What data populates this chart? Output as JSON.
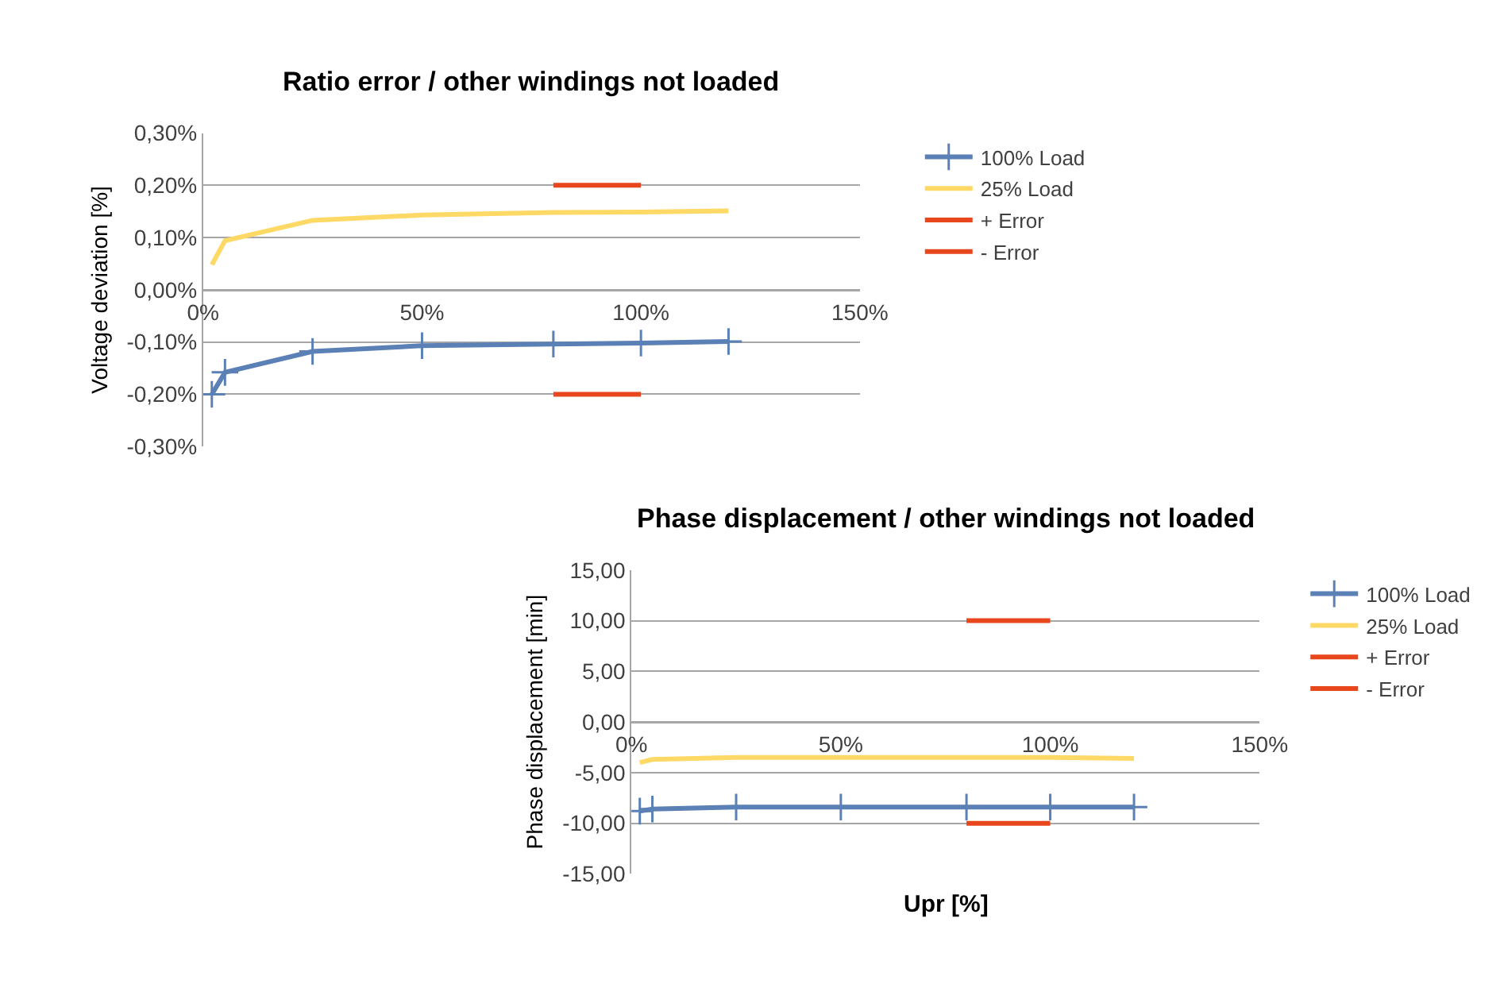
{
  "chart_data": [
    {
      "type": "line",
      "title": "Ratio error / other windings not loaded",
      "ylabel": "Voltage deviation [%]",
      "grid": "y",
      "legend": "right",
      "line_style": "solid",
      "xlim": [
        0,
        150
      ],
      "xticks": [
        {
          "value": 0,
          "label": "0%"
        },
        {
          "value": 50,
          "label": "50%"
        },
        {
          "value": 100,
          "label": "100%"
        },
        {
          "value": 150,
          "label": "150%"
        }
      ],
      "ylim": [
        -0.3,
        0.3
      ],
      "yticks": [
        {
          "value": -0.3,
          "label": "-0,30%"
        },
        {
          "value": -0.2,
          "label": "-0,20%"
        },
        {
          "value": -0.1,
          "label": "-0,10%"
        },
        {
          "value": 0,
          "label": "0,00%"
        },
        {
          "value": 0.1,
          "label": "0,10%"
        },
        {
          "value": 0.2,
          "label": "0,20%"
        },
        {
          "value": 0.3,
          "label": "0,30%"
        }
      ],
      "series": [
        {
          "name": "100% Load",
          "color": "#5b80b5",
          "marker": "cross",
          "x": [
            2,
            5,
            25,
            50,
            80,
            100,
            120
          ],
          "values": [
            -0.2,
            -0.158,
            -0.118,
            -0.107,
            -0.104,
            -0.102,
            -0.099
          ]
        },
        {
          "name": "25% Load",
          "color": "#ffd966",
          "marker": "none",
          "x": [
            2,
            5,
            25,
            50,
            80,
            100,
            120
          ],
          "values": [
            0.048,
            0.094,
            0.133,
            0.143,
            0.148,
            0.149,
            0.151
          ]
        },
        {
          "name": "+ Error",
          "color": "#e8461c",
          "marker": "none",
          "x": [
            80,
            100
          ],
          "values": [
            0.2,
            0.2
          ]
        },
        {
          "name": "- Error",
          "color": "#e8461c",
          "marker": "none",
          "x": [
            80,
            100
          ],
          "values": [
            -0.2,
            -0.2
          ]
        }
      ]
    },
    {
      "type": "line",
      "title": "Phase displacement / other windings not loaded",
      "xlabel": "Upr [%]",
      "ylabel": "Phase displacement [min]",
      "grid": "y",
      "legend": "right",
      "line_style": "solid",
      "xlim": [
        0,
        150
      ],
      "xticks": [
        {
          "value": 0,
          "label": "0%"
        },
        {
          "value": 50,
          "label": "50%"
        },
        {
          "value": 100,
          "label": "100%"
        },
        {
          "value": 150,
          "label": "150%"
        }
      ],
      "ylim": [
        -15,
        15
      ],
      "yticks": [
        {
          "value": -15,
          "label": "-15,00"
        },
        {
          "value": -10,
          "label": "-10,00"
        },
        {
          "value": -5,
          "label": "-5,00"
        },
        {
          "value": 0,
          "label": "0,00"
        },
        {
          "value": 5,
          "label": "5,00"
        },
        {
          "value": 10,
          "label": "10,00"
        },
        {
          "value": 15,
          "label": "15,00"
        }
      ],
      "series": [
        {
          "name": "100% Load",
          "color": "#5b80b5",
          "marker": "cross",
          "x": [
            2,
            5,
            25,
            50,
            80,
            100,
            120
          ],
          "values": [
            -8.8,
            -8.6,
            -8.4,
            -8.4,
            -8.4,
            -8.4,
            -8.4
          ]
        },
        {
          "name": "25% Load",
          "color": "#ffd966",
          "marker": "none",
          "x": [
            2,
            5,
            25,
            50,
            80,
            100,
            120
          ],
          "values": [
            -4.0,
            -3.7,
            -3.5,
            -3.5,
            -3.5,
            -3.5,
            -3.6
          ]
        },
        {
          "name": "+ Error",
          "color": "#e8461c",
          "marker": "none",
          "x": [
            80,
            100
          ],
          "values": [
            10,
            10
          ]
        },
        {
          "name": "- Error",
          "color": "#e8461c",
          "marker": "none",
          "x": [
            80,
            100
          ],
          "values": [
            -10,
            -10
          ]
        }
      ]
    }
  ]
}
